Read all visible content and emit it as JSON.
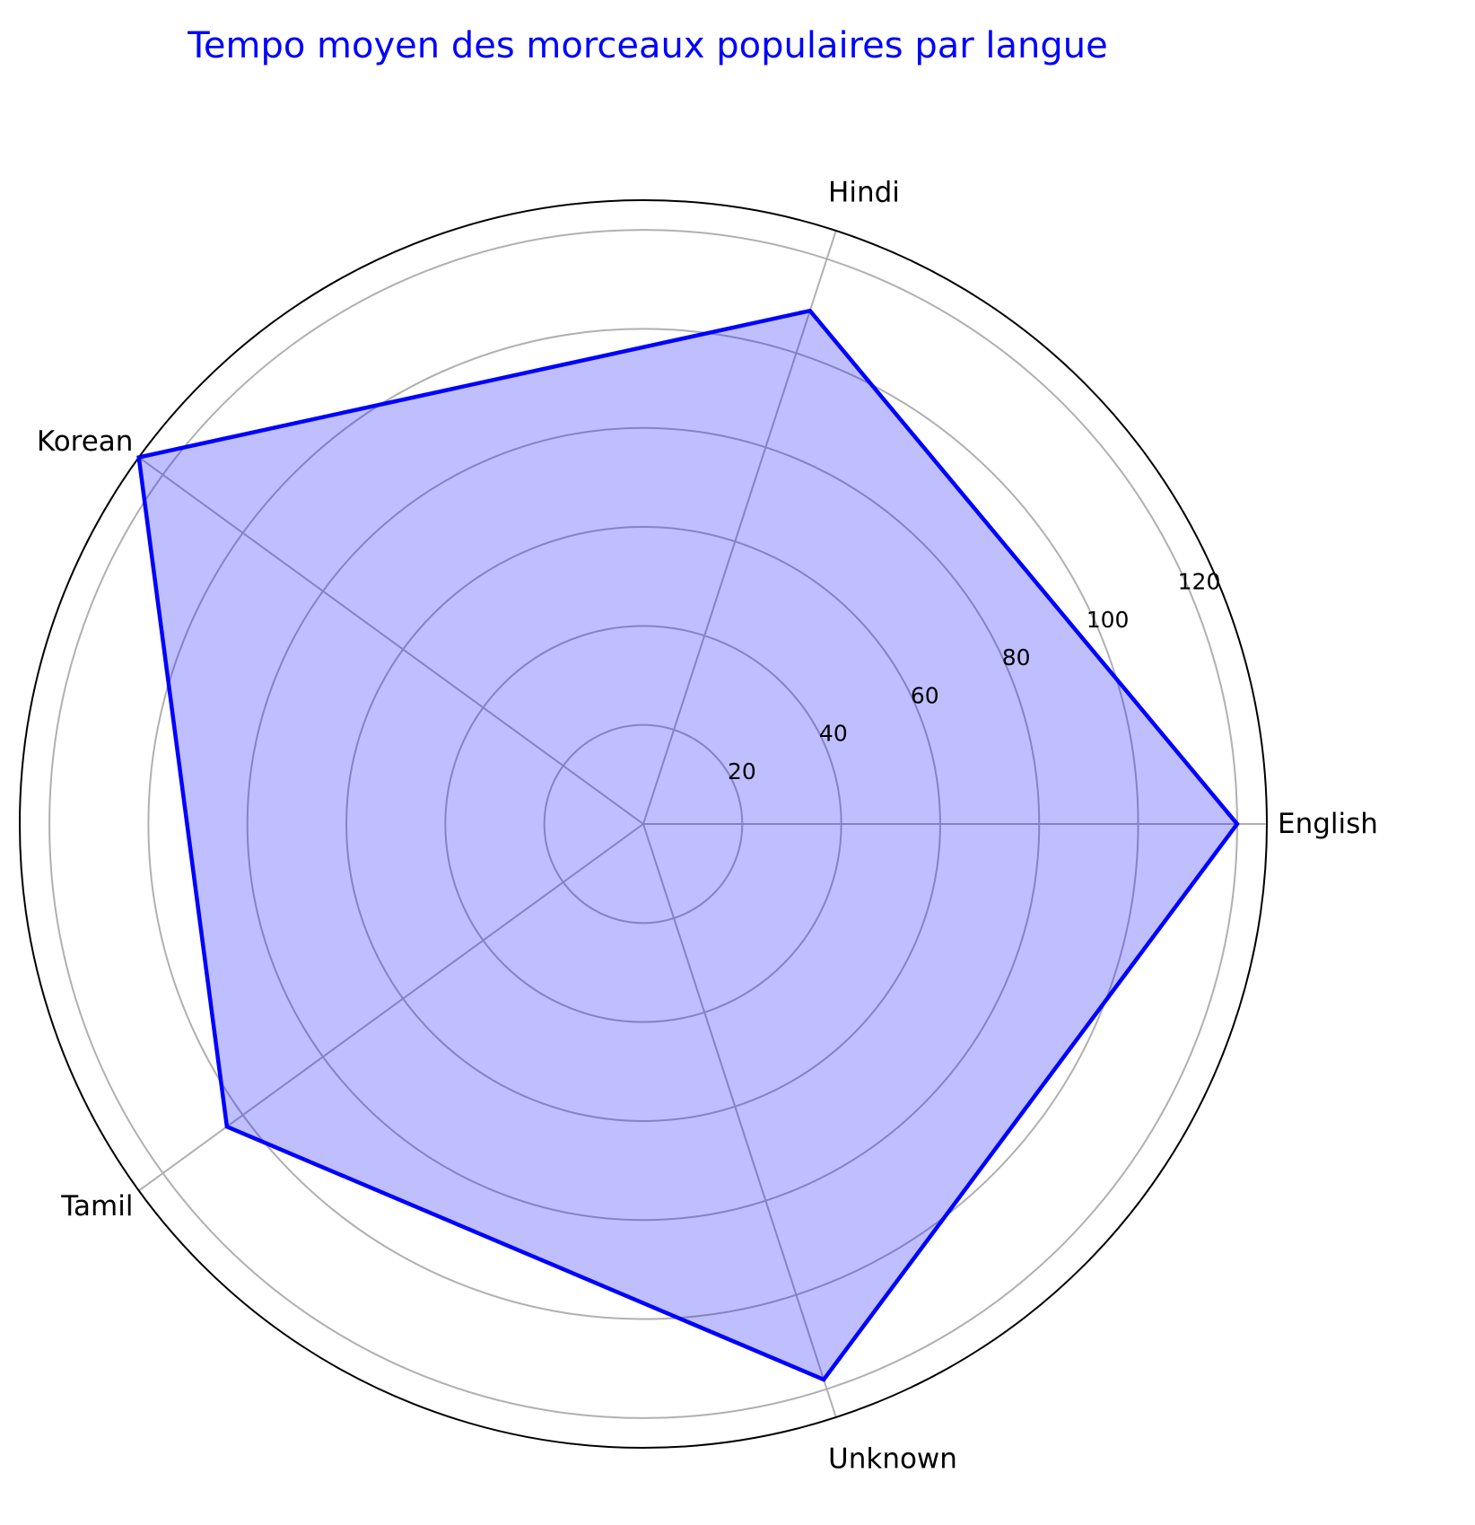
{
  "chart_data": {
    "type": "radar",
    "title": "Tempo moyen des morceaux populaires par langue",
    "categories": [
      "English",
      "Hindi",
      "Korean",
      "Tamil",
      "Unknown"
    ],
    "series": [
      {
        "values": [
          120,
          109,
          126,
          104,
          118
        ]
      }
    ],
    "rlim": [
      0,
      126
    ],
    "rticks": [
      20,
      40,
      60,
      80,
      100,
      120
    ],
    "grid": true,
    "colors": {
      "title": "#0000ff",
      "line": "#0000ff",
      "fill": "#0000ff",
      "grid": "#b0b0b0",
      "frame": "#000000"
    }
  }
}
